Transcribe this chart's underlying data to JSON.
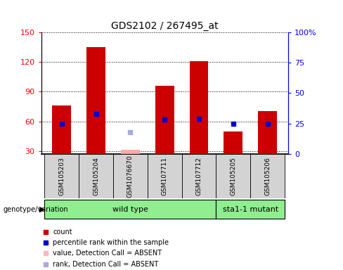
{
  "title": "GDS2102 / 267495_at",
  "samples": [
    "GSM105203",
    "GSM105204",
    "GSM1076670",
    "GSM107711",
    "GSM107712",
    "GSM105205",
    "GSM105206"
  ],
  "counts": [
    76,
    135,
    31,
    96,
    121,
    50,
    70
  ],
  "percentile_ranks_right": [
    25,
    33,
    null,
    28,
    29,
    25,
    25
  ],
  "absent_rank_right": [
    null,
    null,
    18,
    null,
    null,
    null,
    null
  ],
  "detection_absent": [
    false,
    false,
    true,
    false,
    false,
    false,
    false
  ],
  "groups": [
    "wild type",
    "wild type",
    "wild type",
    "wild type",
    "wild type",
    "sta1-1 mutant",
    "sta1-1 mutant"
  ],
  "ylim_left": [
    27,
    150
  ],
  "ylim_right": [
    0,
    100
  ],
  "yticks_left": [
    30,
    60,
    90,
    120,
    150
  ],
  "yticks_right": [
    0,
    25,
    50,
    75,
    100
  ],
  "bar_color_present": "#cc0000",
  "bar_color_absent": "#ffaaaa",
  "rank_color_present": "#0000cc",
  "rank_color_absent": "#aaaadd",
  "bar_width": 0.55
}
